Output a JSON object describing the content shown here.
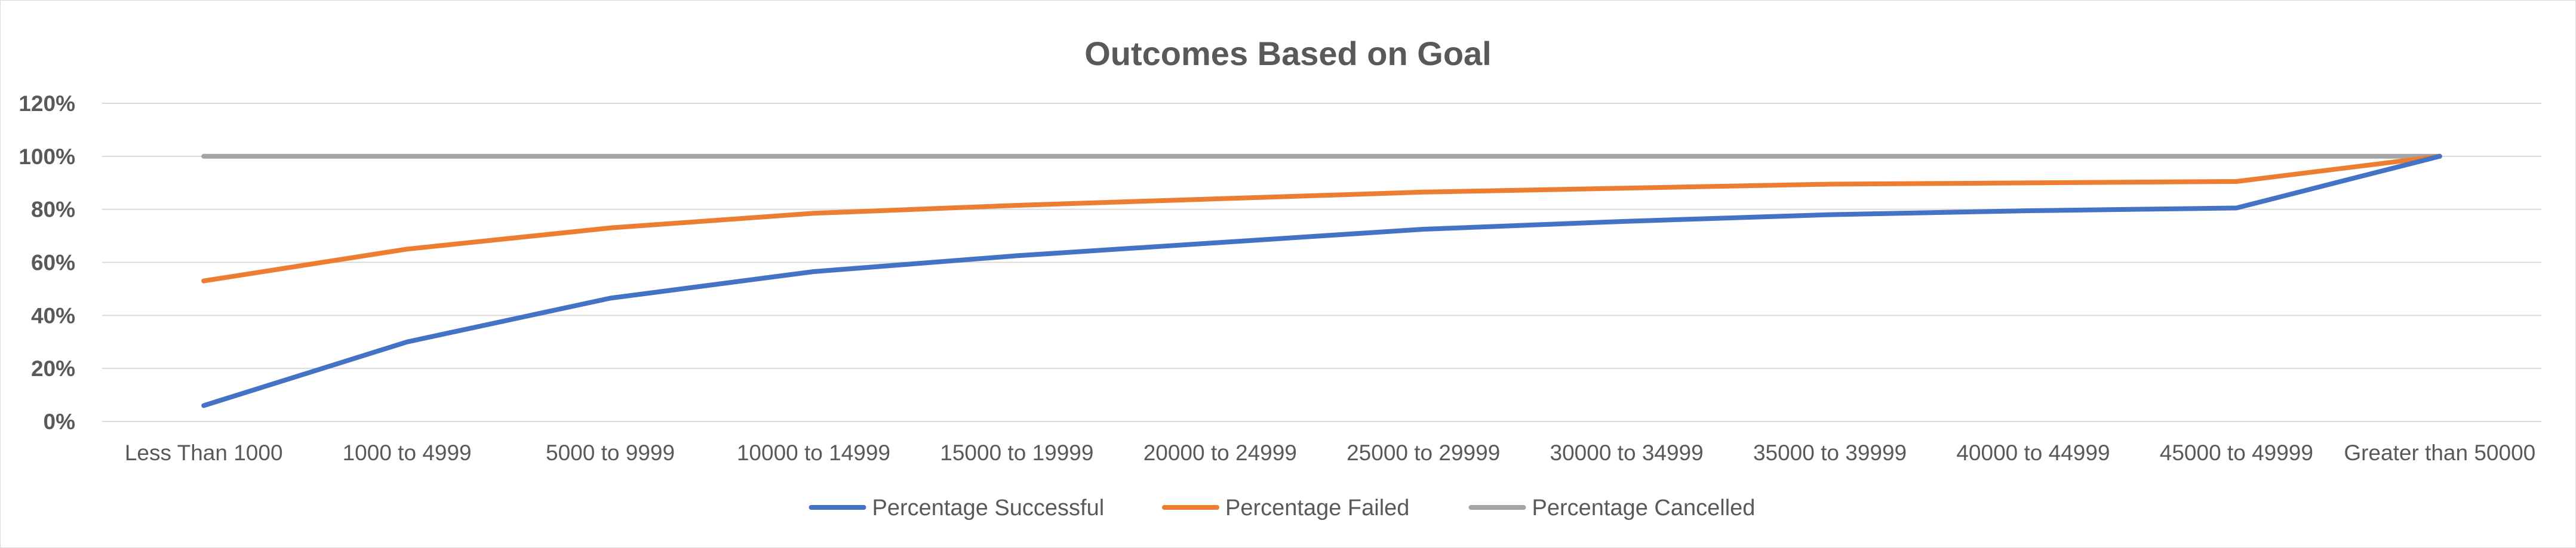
{
  "chart_data": {
    "type": "line",
    "title": "Outcomes Based on Goal",
    "xlabel": "",
    "ylabel": "",
    "categories": [
      "Less Than 1000",
      "1000 to 4999",
      "5000 to 9999",
      "10000 to 14999",
      "15000 to 19999",
      "20000 to 24999",
      "25000 to 29999",
      "30000 to 34999",
      "35000 to 39999",
      "40000 to 44999",
      "45000 to 49999",
      "Greater than 50000"
    ],
    "ylim": [
      0,
      1.2
    ],
    "yticks": [
      0,
      0.2,
      0.4,
      0.6,
      0.8,
      1.0,
      1.2
    ],
    "ytick_labels": [
      "0%",
      "20%",
      "40%",
      "60%",
      "80%",
      "100%",
      "120%"
    ],
    "grid": true,
    "legend_position": "bottom",
    "series": [
      {
        "name": "Percentage Successful",
        "color": "#4472C4",
        "values": [
          0.06,
          0.3,
          0.465,
          0.565,
          0.625,
          0.675,
          0.725,
          0.755,
          0.78,
          0.795,
          0.805,
          1.0
        ]
      },
      {
        "name": "Percentage Failed",
        "color": "#ED7D31",
        "values": [
          0.53,
          0.65,
          0.73,
          0.785,
          0.815,
          0.84,
          0.865,
          0.88,
          0.895,
          0.9,
          0.905,
          1.0
        ]
      },
      {
        "name": "Percentage Cancelled",
        "color": "#A5A5A5",
        "values": [
          1.0,
          1.0,
          1.0,
          1.0,
          1.0,
          1.0,
          1.0,
          1.0,
          1.0,
          1.0,
          1.0,
          1.0
        ]
      }
    ]
  }
}
